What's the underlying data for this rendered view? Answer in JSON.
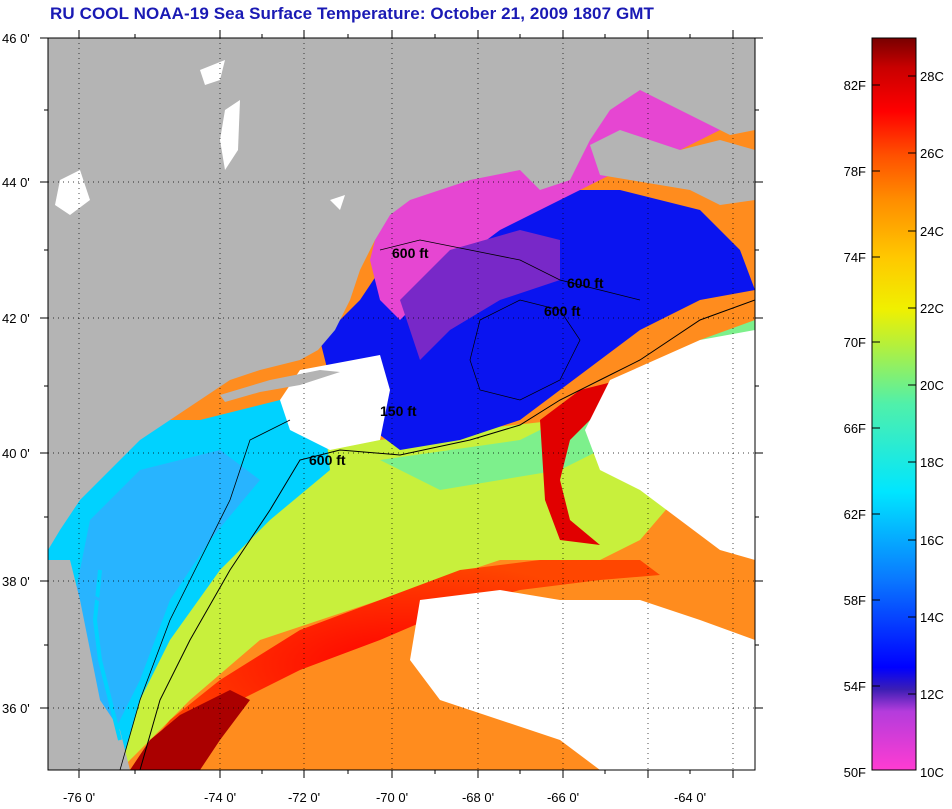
{
  "title": "RU COOL  NOAA-19  Sea Surface Temperature:  October 21, 2009 1807 GMT",
  "map": {
    "lat_labels": [
      "46 0'",
      "44 0'",
      "42 0'",
      "40 0'",
      "38 0'",
      "36 0'"
    ],
    "lon_labels": [
      "-76 0'",
      "-74 0'",
      "-72 0'",
      "-70 0'",
      "-68 0'",
      "-66 0'",
      "-64 0'"
    ],
    "contour_labels": [
      "600 ft",
      "600 ft",
      "600 ft",
      "150 ft",
      "600 ft"
    ],
    "colors": {
      "land": "#b4b4b4",
      "cloud": "#ffffff",
      "frame": "#000000"
    }
  },
  "colorbar": {
    "f_labels": [
      "82F",
      "78F",
      "74F",
      "70F",
      "66F",
      "62F",
      "58F",
      "54F",
      "50F"
    ],
    "c_labels": [
      "28C",
      "26C",
      "24C",
      "22C",
      "20C",
      "18C",
      "16C",
      "14C",
      "12C",
      "10C"
    ],
    "range_f": [
      50,
      85
    ]
  }
}
